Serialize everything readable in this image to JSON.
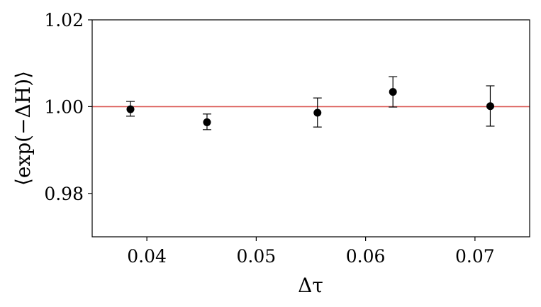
{
  "chart_data": {
    "type": "scatter",
    "xlabel": "Δτ",
    "ylabel": "⟨exp(−ΔH)⟩",
    "xlim": [
      0.035,
      0.075
    ],
    "ylim": [
      0.97,
      1.02
    ],
    "xticks": [
      0.04,
      0.05,
      0.06,
      0.07
    ],
    "xtick_labels": [
      "0.04",
      "0.05",
      "0.06",
      "0.07"
    ],
    "yticks": [
      0.98,
      1.0,
      1.02
    ],
    "ytick_labels": [
      "0.98",
      "1.00",
      "1.02"
    ],
    "grid": false,
    "series": [
      {
        "points": [
          {
            "x": 0.0385,
            "y": 0.9994,
            "yerr_low": 0.9978,
            "yerr_high": 1.0012
          },
          {
            "x": 0.0455,
            "y": 0.9964,
            "yerr_low": 0.9947,
            "yerr_high": 0.9983
          },
          {
            "x": 0.0556,
            "y": 0.9986,
            "yerr_low": 0.9953,
            "yerr_high": 1.002
          },
          {
            "x": 0.0625,
            "y": 1.0034,
            "yerr_low": 0.9999,
            "yerr_high": 1.0069
          },
          {
            "x": 0.0714,
            "y": 1.0001,
            "yerr_low": 0.9955,
            "yerr_high": 1.0048
          }
        ],
        "color": "#000000"
      }
    ],
    "reference_line": {
      "y": 1.0,
      "color": "#d9534f"
    }
  }
}
